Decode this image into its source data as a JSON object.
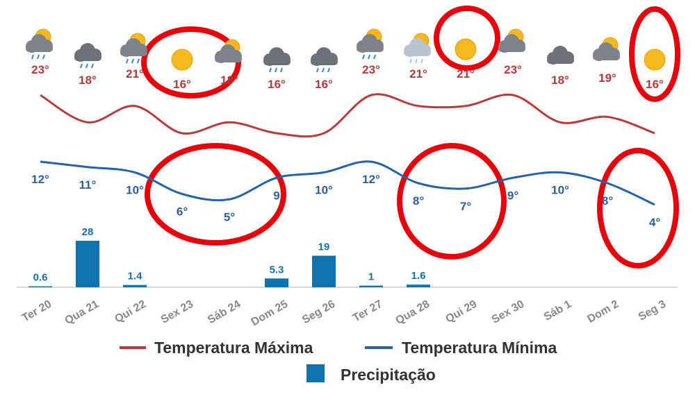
{
  "chart_data": {
    "type": "weather",
    "categories": [
      "Ter 20",
      "Qua 21",
      "Qui 22",
      "Sex 23",
      "Sáb 24",
      "Dom 25",
      "Seg 26",
      "Ter 27",
      "Qua 28",
      "Qui 29",
      "Sex 30",
      "Sáb 1",
      "Dom 2",
      "Seg 3"
    ],
    "series": [
      {
        "name": "Temperatura Máxima",
        "color": "#b83a3a",
        "values": [
          23,
          18,
          21,
          16,
          18,
          16,
          16,
          23,
          21,
          21,
          23,
          18,
          19,
          16
        ],
        "value_labels": [
          "23°",
          "18°",
          "21°",
          "16°",
          "18°",
          "16°",
          "16°",
          "23°",
          "21°",
          "21°",
          "23°",
          "18°",
          "19°",
          "16°"
        ]
      },
      {
        "name": "Temperatura Mínima",
        "color": "#2563a8",
        "values": [
          12,
          11,
          10,
          6,
          5,
          9,
          10,
          12,
          8,
          7,
          9,
          10,
          8,
          4
        ],
        "value_labels": [
          "12°",
          "11°",
          "10°",
          "6°",
          "5°",
          "9",
          "10°",
          "12°",
          "8°",
          "7°",
          "9°",
          "10°",
          "8°",
          "4°"
        ]
      },
      {
        "name": "Precipitação",
        "color": "#0f74ae",
        "values": [
          0.6,
          28,
          1.4,
          null,
          null,
          5.3,
          19,
          1,
          1.6,
          null,
          null,
          null,
          null,
          null
        ]
      }
    ]
  }
}
